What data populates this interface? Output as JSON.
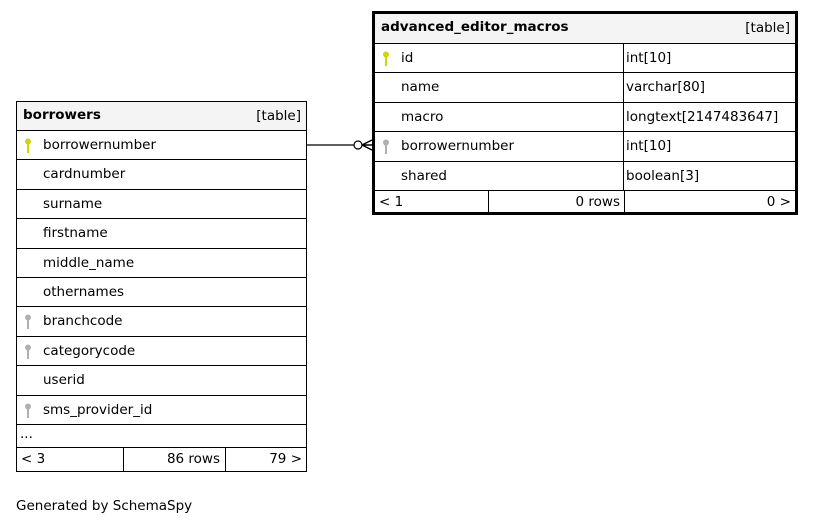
{
  "tables": {
    "borrowers": {
      "name": "borrowers",
      "type": "[table]",
      "columns": [
        {
          "name": "borrowernumber",
          "key": "primary"
        },
        {
          "name": "cardnumber",
          "key": "none"
        },
        {
          "name": "surname",
          "key": "none"
        },
        {
          "name": "firstname",
          "key": "none"
        },
        {
          "name": "middle_name",
          "key": "none"
        },
        {
          "name": "othernames",
          "key": "none"
        },
        {
          "name": "branchcode",
          "key": "foreign"
        },
        {
          "name": "categorycode",
          "key": "foreign"
        },
        {
          "name": "userid",
          "key": "none"
        },
        {
          "name": "sms_provider_id",
          "key": "foreign"
        }
      ],
      "more": "...",
      "parents": "< 3",
      "rows": "86 rows",
      "children": "79 >"
    },
    "advanced_editor_macros": {
      "name": "advanced_editor_macros",
      "type": "[table]",
      "columns": [
        {
          "name": "id",
          "datatype": "int[10]",
          "key": "primary"
        },
        {
          "name": "name",
          "datatype": "varchar[80]",
          "key": "none"
        },
        {
          "name": "macro",
          "datatype": "longtext[2147483647]",
          "key": "none"
        },
        {
          "name": "borrowernumber",
          "datatype": "int[10]",
          "key": "foreign"
        },
        {
          "name": "shared",
          "datatype": "boolean[3]",
          "key": "none"
        }
      ],
      "parents": "< 1",
      "rows": "0 rows",
      "children": "0 >"
    }
  },
  "colors": {
    "primary_key": "#d4d400",
    "foreign_key": "#b0b0b0",
    "header_bg": "#f4f4f4"
  },
  "footer": "Generated by SchemaSpy"
}
